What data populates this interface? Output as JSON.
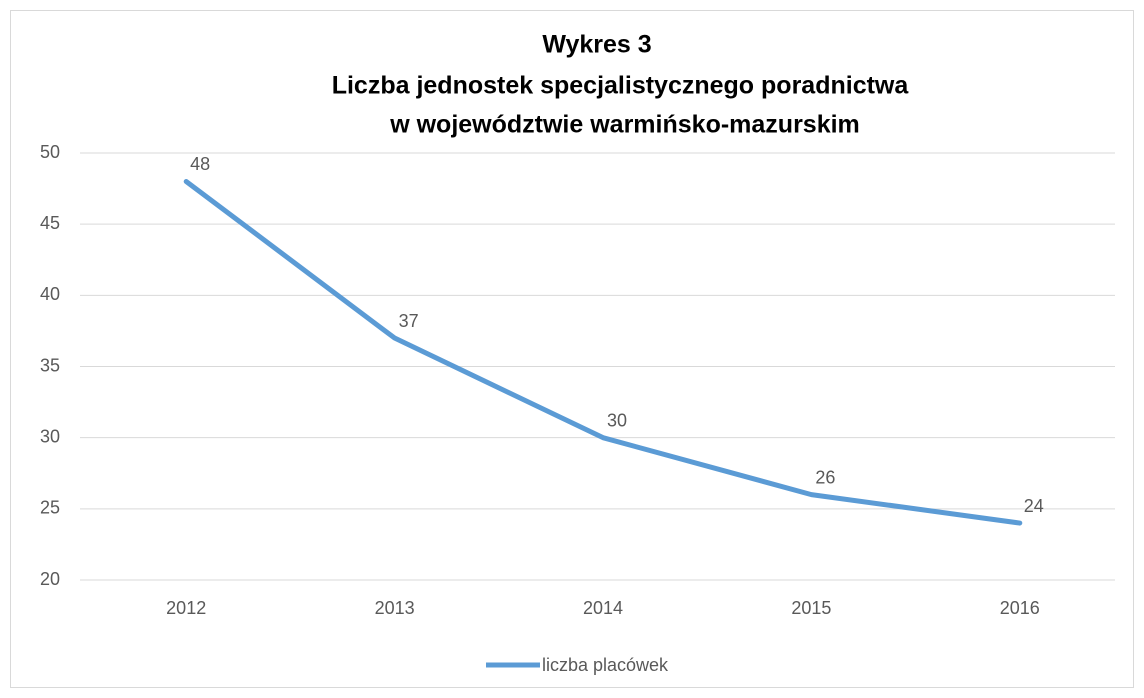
{
  "chart_data": {
    "type": "line",
    "title": [
      "Wykres 3",
      "Liczba jednostek specjalistycznego poradnictwa",
      "w województwie warmińsko-mazurskim"
    ],
    "categories": [
      "2012",
      "2013",
      "2014",
      "2015",
      "2016"
    ],
    "series": [
      {
        "name": "liczba placówek",
        "color": "#5b9bd5",
        "values": [
          48,
          37,
          30,
          26,
          24
        ]
      }
    ],
    "ylim": [
      20,
      50
    ],
    "yticks": [
      20,
      25,
      30,
      35,
      40,
      45,
      50
    ],
    "grid": true,
    "legend": "bottom"
  }
}
